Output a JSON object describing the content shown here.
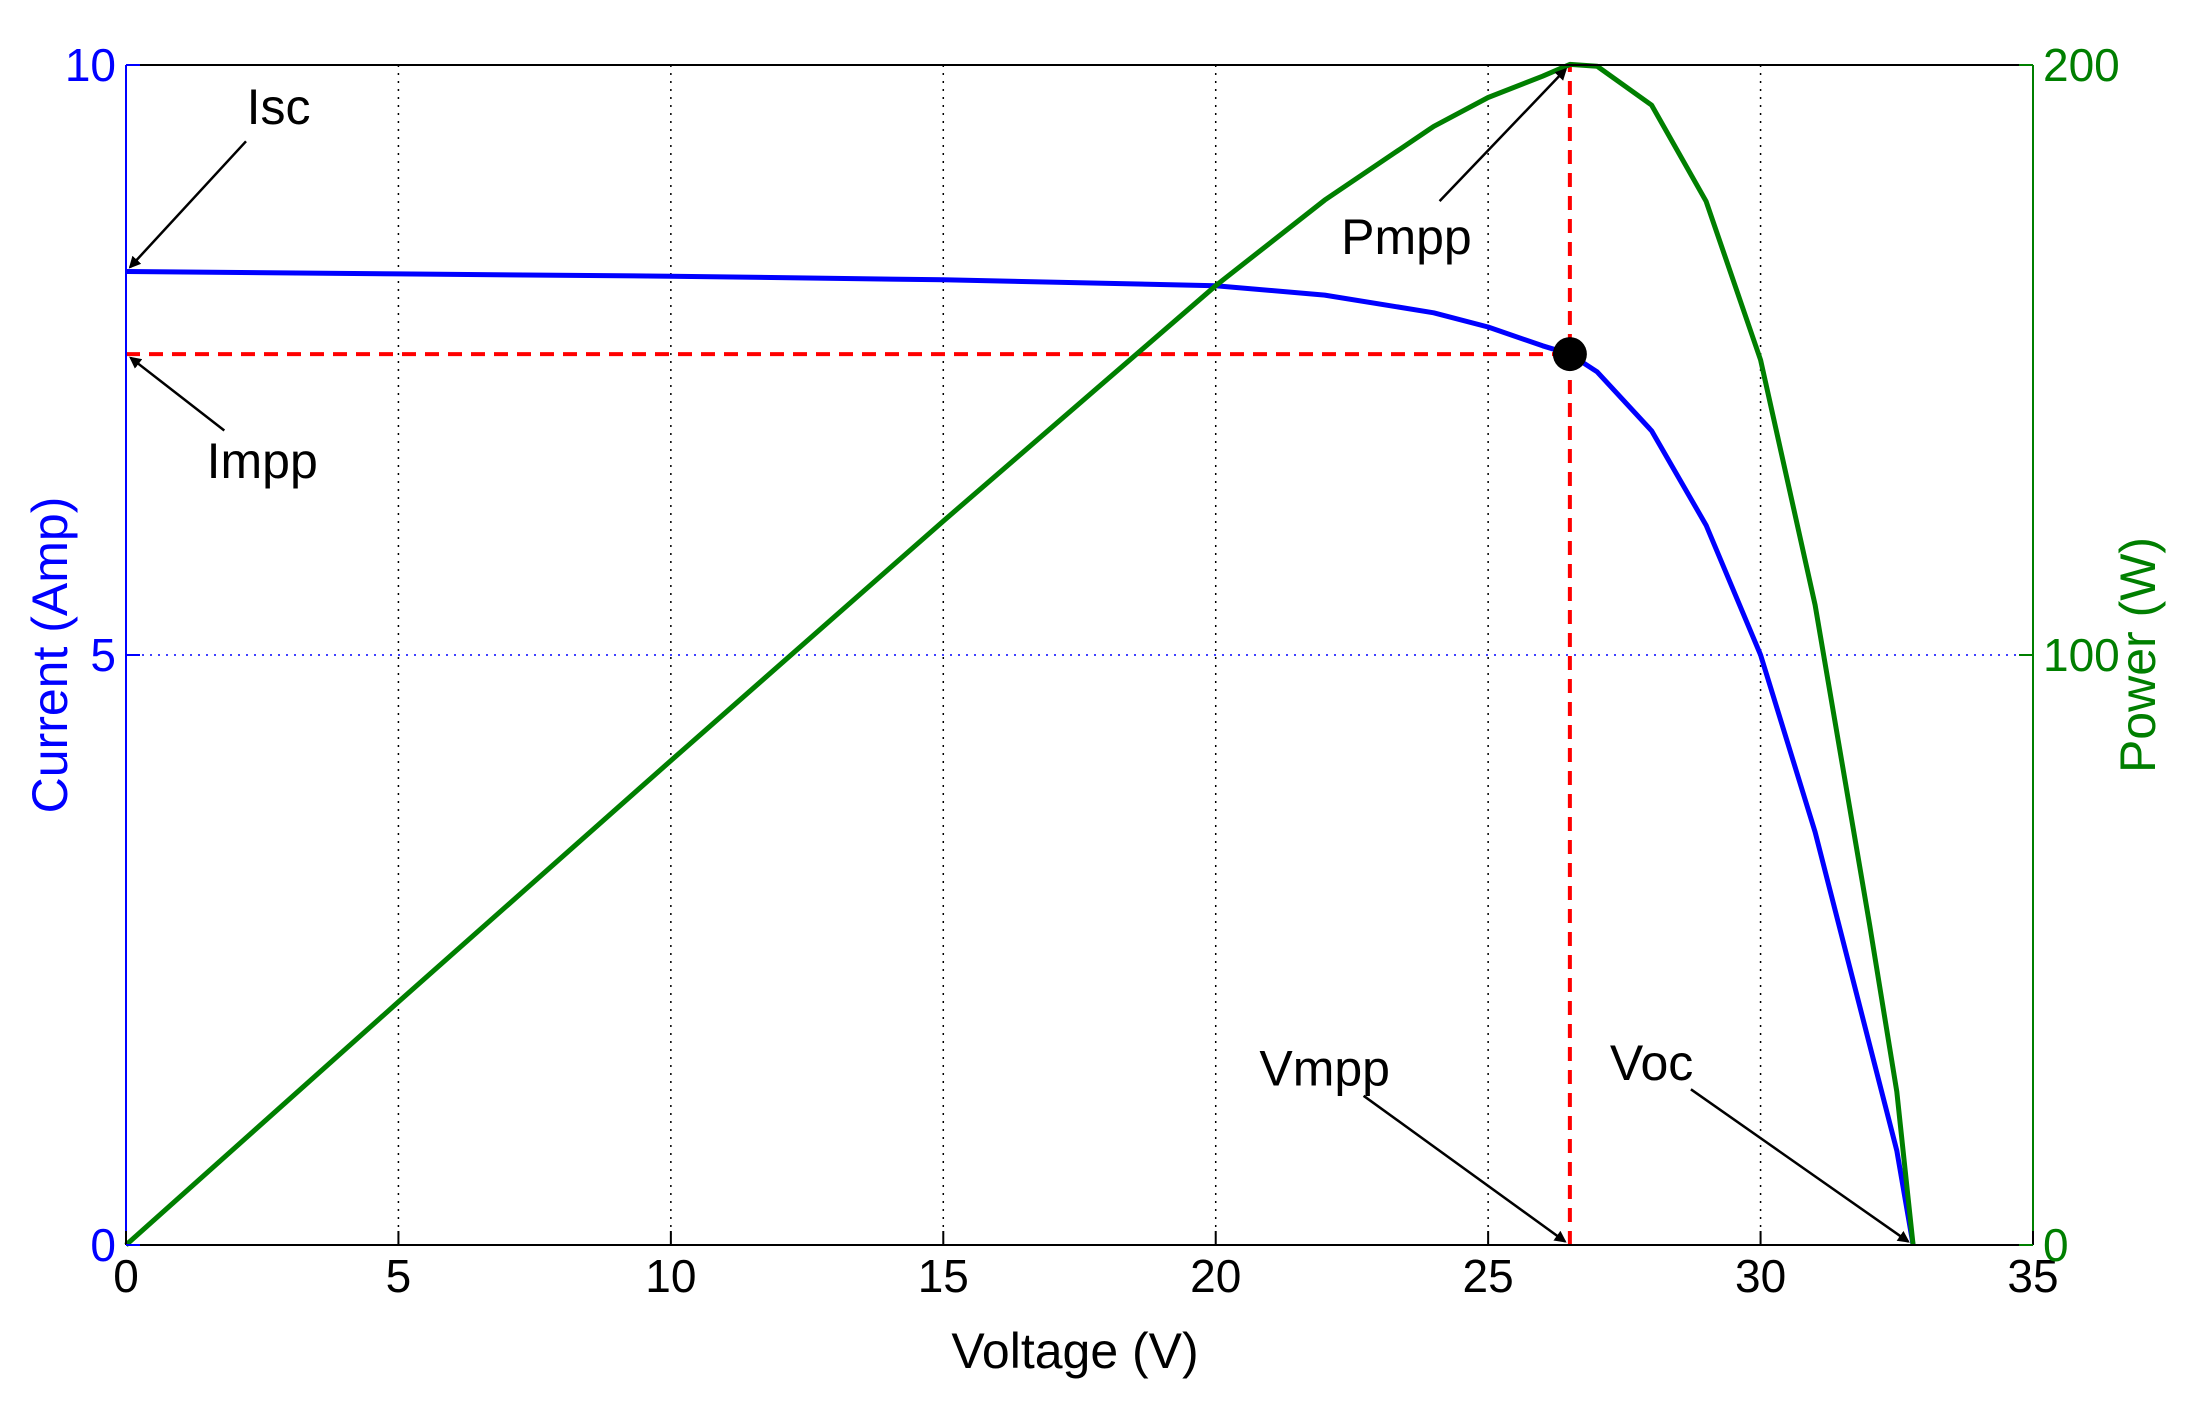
{
  "chart_data": {
    "type": "line",
    "title": "",
    "xlabel": "Voltage (V)",
    "ylabel_left": "Current (Amp)",
    "ylabel_right": "Power (W)",
    "xlim": [
      0,
      35
    ],
    "ylim_left": [
      0,
      10
    ],
    "ylim_right": [
      0,
      200
    ],
    "x_ticks": [
      0,
      5,
      10,
      15,
      20,
      25,
      30,
      35
    ],
    "y_left_ticks": [
      0,
      5,
      10
    ],
    "y_right_ticks": [
      0,
      100,
      200
    ],
    "grid": true,
    "colors": {
      "current": "#0000ff",
      "power": "#007f00",
      "guide": "#ff0000",
      "marker": "#000000"
    },
    "series": [
      {
        "name": "Current",
        "axis": "left",
        "x": [
          0,
          5,
          10,
          15,
          20,
          22,
          24,
          25,
          26,
          26.5,
          27,
          28,
          29,
          30,
          31,
          32,
          32.5,
          32.8
        ],
        "values": [
          8.25,
          8.23,
          8.21,
          8.18,
          8.13,
          8.05,
          7.9,
          7.78,
          7.62,
          7.55,
          7.4,
          6.9,
          6.1,
          5.0,
          3.5,
          1.7,
          0.8,
          0
        ]
      },
      {
        "name": "Power",
        "axis": "right",
        "x": [
          0,
          5,
          10,
          15,
          20,
          22,
          24,
          25,
          26,
          26.5,
          27,
          28,
          29,
          30,
          31,
          32,
          32.5,
          32.8
        ],
        "values": [
          0,
          41.2,
          82.1,
          122.7,
          162.6,
          177.1,
          189.6,
          194.5,
          198.1,
          200.1,
          199.8,
          193.2,
          176.9,
          150,
          108.5,
          54.4,
          26,
          0
        ]
      }
    ],
    "mpp": {
      "voltage": 26.5,
      "current": 7.55,
      "power": 200
    },
    "annotations": [
      {
        "text": "Isc",
        "x": 2.8,
        "y": 9.5,
        "target_x": 0,
        "target_y": 8.25
      },
      {
        "text": "Impp",
        "x": 2.5,
        "y": 6.5,
        "target_x": 0,
        "target_y": 7.55
      },
      {
        "text": "Pmpp",
        "x": 23.5,
        "y": 8.4,
        "target_x": 26.5,
        "target_y": 10
      },
      {
        "text": "Vmpp",
        "x": 22,
        "y": 1.35,
        "target_x": 26.5,
        "target_y": 0
      },
      {
        "text": "Voc",
        "x": 28,
        "y": 1.4,
        "target_x": 32.8,
        "target_y": 0
      }
    ]
  }
}
